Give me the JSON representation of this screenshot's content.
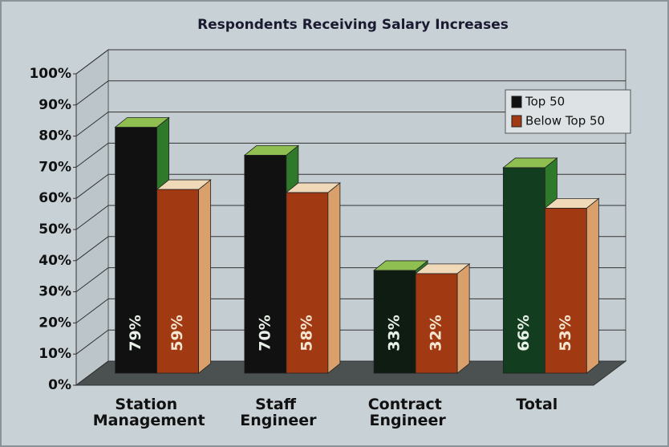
{
  "chart_data": {
    "type": "bar3d",
    "title": "Respondents Receiving Salary Increases",
    "categories": [
      "Station Management",
      "Staff Engineer",
      "Contract Engineer",
      "Total"
    ],
    "series": [
      {
        "name": "Top 50",
        "color": "#111111",
        "colors": [
          "#111111",
          "#111111",
          "#0f1c12",
          "#123d1f"
        ],
        "values": [
          79,
          70,
          33,
          66
        ],
        "value_labels": [
          "79%",
          "70%",
          "33%",
          "66%"
        ]
      },
      {
        "name": "Below Top 50",
        "color": "#a13a12",
        "values": [
          59,
          58,
          32,
          53
        ],
        "value_labels": [
          "59%",
          "58%",
          "32%",
          "53%"
        ]
      }
    ],
    "ylim": [
      0,
      100
    ],
    "yticks": [
      {
        "value": 0,
        "label": "0%"
      },
      {
        "value": 10,
        "label": "10%"
      },
      {
        "value": 20,
        "label": "20%"
      },
      {
        "value": 30,
        "label": "30%"
      },
      {
        "value": 40,
        "label": "40%"
      },
      {
        "value": 50,
        "label": "50%"
      },
      {
        "value": 60,
        "label": "60%"
      },
      {
        "value": 70,
        "label": "70%"
      },
      {
        "value": 80,
        "label": "80%"
      },
      {
        "value": 90,
        "label": "90%"
      },
      {
        "value": 100,
        "label": "100%"
      }
    ],
    "grid": true,
    "legend": "upper right"
  }
}
